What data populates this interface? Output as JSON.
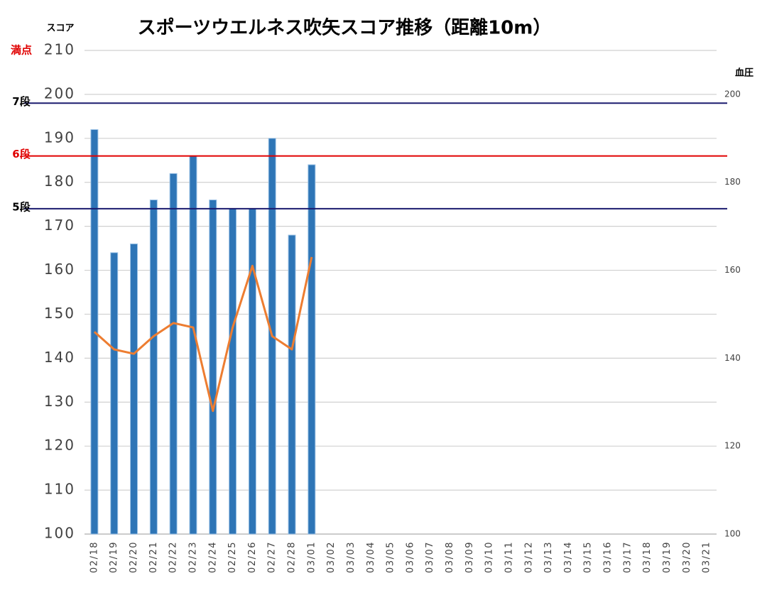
{
  "chart_data": {
    "type": "bar",
    "title": "スポーツウエルネス吹矢スコア推移（距離10m）",
    "ylabel": "スコア",
    "y2label": "血圧",
    "categories": [
      "02/18",
      "02/19",
      "02/20",
      "02/21",
      "02/22",
      "02/23",
      "02/24",
      "02/25",
      "02/26",
      "02/27",
      "02/28",
      "03/01",
      "03/02",
      "03/03",
      "03/04",
      "03/05",
      "03/06",
      "03/07",
      "03/08",
      "03/09",
      "03/10",
      "03/11",
      "03/12",
      "03/13",
      "03/14",
      "03/15",
      "03/16",
      "03/17",
      "03/18",
      "03/19",
      "03/20",
      "03/21"
    ],
    "series": [
      {
        "type": "bar",
        "color": "#2e75b6",
        "values": [
          192,
          164,
          166,
          176,
          182,
          186,
          176,
          174,
          174,
          190,
          168,
          184,
          null,
          null,
          null,
          null,
          null,
          null,
          null,
          null,
          null,
          null,
          null,
          null,
          null,
          null,
          null,
          null,
          null,
          null,
          null,
          null
        ]
      },
      {
        "type": "line",
        "color": "#ed7d31",
        "axis": "y2",
        "values": [
          146,
          142,
          141,
          145,
          148,
          147,
          128,
          147,
          161,
          145,
          142,
          163,
          null,
          null,
          null,
          null,
          null,
          null,
          null,
          null,
          null,
          null,
          null,
          null,
          null,
          null,
          null,
          null,
          null,
          null,
          null,
          null
        ]
      }
    ],
    "ylim": [
      100,
      210
    ],
    "yticks": [
      100,
      110,
      120,
      130,
      140,
      150,
      160,
      170,
      180,
      190,
      200,
      210
    ],
    "y2lim": [
      100,
      210
    ],
    "y2ticks": [
      100,
      120,
      140,
      160,
      180,
      200
    ],
    "grid": true,
    "reference_lines": [
      {
        "label": "満点",
        "value": 210,
        "label_color": "#e00000"
      },
      {
        "label": "7段",
        "value": 198,
        "label_color": "#000000",
        "line_color": "#1a1a6e"
      },
      {
        "label": "6段",
        "value": 186,
        "label_color": "#e00000",
        "line_color": "#e00000"
      },
      {
        "label": "5段",
        "value": 174,
        "label_color": "#000000",
        "line_color": "#1a1a6e"
      }
    ]
  }
}
